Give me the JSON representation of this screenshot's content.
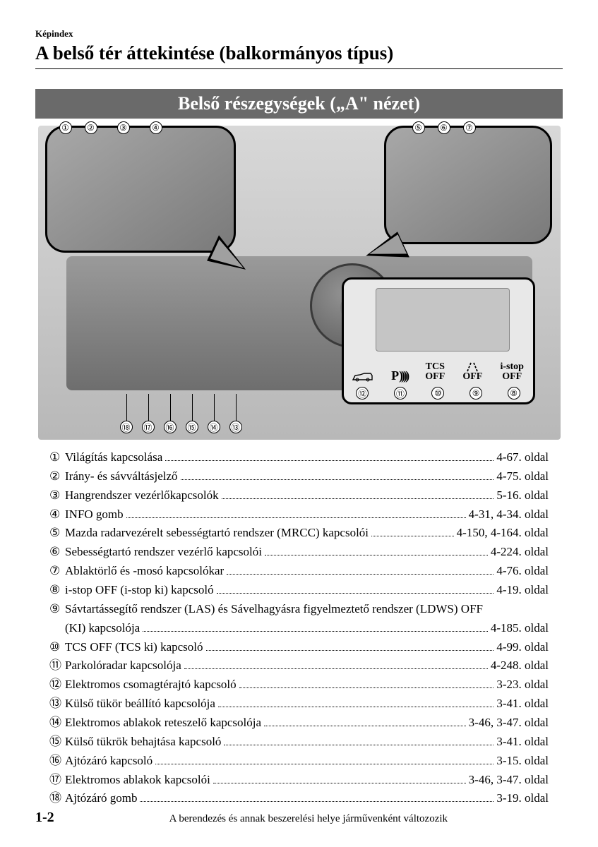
{
  "header": {
    "breadcrumb": "Képindex",
    "title": "A belső tér áttekintése (balkormányos típus)"
  },
  "section_banner": "Belső részegységek („A\" nézet)",
  "diagram": {
    "callouts_top_left": [
      "①",
      "②",
      "③",
      "④"
    ],
    "callouts_top_right": [
      "⑤",
      "⑥",
      "⑦"
    ],
    "callouts_bottom": [
      "⑱",
      "⑰",
      "⑯",
      "⑮",
      "⑭",
      "⑬"
    ],
    "switch_icons": [
      {
        "label": "",
        "glyph": "suv"
      },
      {
        "label": "P",
        "glyph": "radar"
      },
      {
        "label": "TCS\nOFF",
        "glyph": ""
      },
      {
        "label": "OFF",
        "glyph": "lane"
      },
      {
        "label": "i-stop\nOFF",
        "glyph": ""
      }
    ],
    "switch_numbers": [
      "⑫",
      "⑪",
      "⑩",
      "⑨",
      "⑧"
    ]
  },
  "index": [
    {
      "num": "①",
      "text": "Világítás kapcsolása",
      "page": "4-67. oldal"
    },
    {
      "num": "②",
      "text": "Irány- és sávváltásjelző",
      "page": "4-75. oldal"
    },
    {
      "num": "③",
      "text": "Hangrendszer vezérlőkapcsolók",
      "page": "5-16. oldal"
    },
    {
      "num": "④",
      "text": "INFO gomb",
      "page": "4-31, 4-34. oldal"
    },
    {
      "num": "⑤",
      "text": "Mazda radarvezérelt sebességtartó rendszer (MRCC) kapcsolói",
      "page": "4-150, 4-164. oldal"
    },
    {
      "num": "⑥",
      "text": "Sebességtartó rendszer vezérlő kapcsolói",
      "page": "4-224. oldal"
    },
    {
      "num": "⑦",
      "text": "Ablaktörlő és -mosó kapcsolókar",
      "page": "4-76. oldal"
    },
    {
      "num": "⑧",
      "text": "i-stop OFF (i-stop ki) kapcsoló",
      "page": "4-19. oldal"
    },
    {
      "num": "⑨",
      "text": "Sávtartássegítő rendszer (LAS) és Sávelhagyásra figyelmeztető rendszer (LDWS) OFF",
      "page": "",
      "continuation_text": "(KI) kapcsolója",
      "continuation_page": "4-185. oldal"
    },
    {
      "num": "⑩",
      "text": "TCS OFF (TCS ki) kapcsoló",
      "page": "4-99. oldal"
    },
    {
      "num": "⑪",
      "text": "Parkolóradar kapcsolója",
      "page": "4-248. oldal"
    },
    {
      "num": "⑫",
      "text": "Elektromos csomagtérajtó kapcsoló",
      "page": "3-23. oldal"
    },
    {
      "num": "⑬",
      "text": "Külső tükör beállító kapcsolója",
      "page": "3-41. oldal"
    },
    {
      "num": "⑭",
      "text": "Elektromos ablakok reteszelő kapcsolója",
      "page": "3-46, 3-47. oldal"
    },
    {
      "num": "⑮",
      "text": "Külső tükrök behajtása kapcsoló",
      "page": "3-41. oldal"
    },
    {
      "num": "⑯",
      "text": "Ajtózáró kapcsoló",
      "page": "3-15. oldal"
    },
    {
      "num": "⑰",
      "text": "Elektromos ablakok kapcsolói",
      "page": "3-46, 3-47. oldal"
    },
    {
      "num": "⑱",
      "text": "Ajtózáró gomb",
      "page": "3-19. oldal"
    }
  ],
  "footer": {
    "page_number": "1-2",
    "text": "A berendezés és annak beszerelési helye járművenként változozik"
  },
  "colors": {
    "banner_bg": "#6a6a6a",
    "banner_fg": "#ffffff",
    "text": "#000000",
    "diagram_bg_top": "#d8d8d8",
    "diagram_bg_bottom": "#b8b8b8"
  }
}
